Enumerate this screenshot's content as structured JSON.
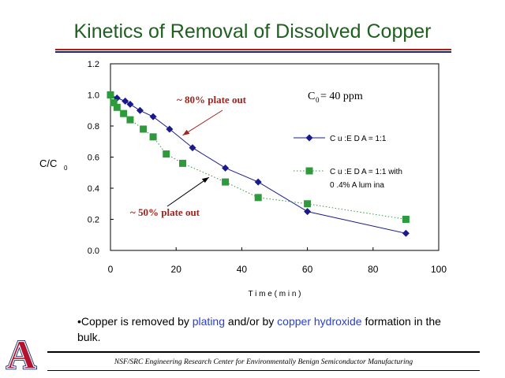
{
  "slide": {
    "title": "Kinetics of Removal of Dissolved Copper",
    "bullet_prefix": "•Copper is removed by ",
    "bullet_hl1": "plating",
    "bullet_mid": " and/or by ",
    "bullet_hl2": "copper hydroxide",
    "bullet_suffix": " formation in the bulk.",
    "footer": "NSF/SRC Engineering Research Center for Environmentally Benign Semiconductor Manufacturing",
    "logo_letter": "A"
  },
  "colors": {
    "title": "#1f5f20",
    "series1": "#1a1a8c",
    "series2": "#2e9a3c",
    "annot_red": "#a0231e",
    "rule_red": "#b11a1a",
    "rule_blue": "#1a237e",
    "logo_red": "#b3122e",
    "logo_blue": "#0c2a66"
  },
  "chart_data": {
    "type": "line",
    "title": "",
    "xlabel": "T i m e  ( m i n )",
    "ylabel_main": "C/C",
    "ylabel_sub": "0",
    "xlim": [
      0,
      100
    ],
    "ylim": [
      0,
      1.2
    ],
    "x_ticks": [
      "0",
      "20",
      "40",
      "60",
      "80",
      "100"
    ],
    "y_ticks": [
      "0.0",
      "0.2",
      "0.4",
      "0.6",
      "0.8",
      "1.0",
      "1.2"
    ],
    "grid": false,
    "legend_position": "right",
    "series": [
      {
        "name": "C u :E D A  =  1:1",
        "marker": "diamond",
        "line": "solid",
        "points": [
          [
            0,
            1.0
          ],
          [
            2,
            0.98
          ],
          [
            4.5,
            0.96
          ],
          [
            6,
            0.94
          ],
          [
            9,
            0.9
          ],
          [
            13,
            0.86
          ],
          [
            18,
            0.78
          ],
          [
            25,
            0.66
          ],
          [
            35,
            0.53
          ],
          [
            45,
            0.44
          ],
          [
            60,
            0.25
          ],
          [
            90,
            0.11
          ]
        ]
      },
      {
        "name": "C u :E D A  =  1:1  with",
        "name_line2": "0 .4%  A lum ina",
        "marker": "square",
        "line": "dotted",
        "points": [
          [
            0,
            1.0
          ],
          [
            1,
            0.95
          ],
          [
            2,
            0.92
          ],
          [
            4,
            0.88
          ],
          [
            6,
            0.84
          ],
          [
            10,
            0.78
          ],
          [
            13,
            0.73
          ],
          [
            17,
            0.62
          ],
          [
            22,
            0.56
          ],
          [
            35,
            0.44
          ],
          [
            45,
            0.34
          ],
          [
            60,
            0.3
          ],
          [
            90,
            0.2
          ]
        ]
      }
    ],
    "annotations": [
      {
        "text": "~ 80% plate out",
        "color_key": "annot_red",
        "points_to": [
          22,
          0.74
        ]
      },
      {
        "text": "~ 50% plate out",
        "color_key": "black",
        "points_to": [
          30,
          0.47
        ]
      }
    ],
    "concentration_label_main": "C",
    "concentration_label_sub": "0",
    "concentration_label_value": " = 40 ppm"
  }
}
